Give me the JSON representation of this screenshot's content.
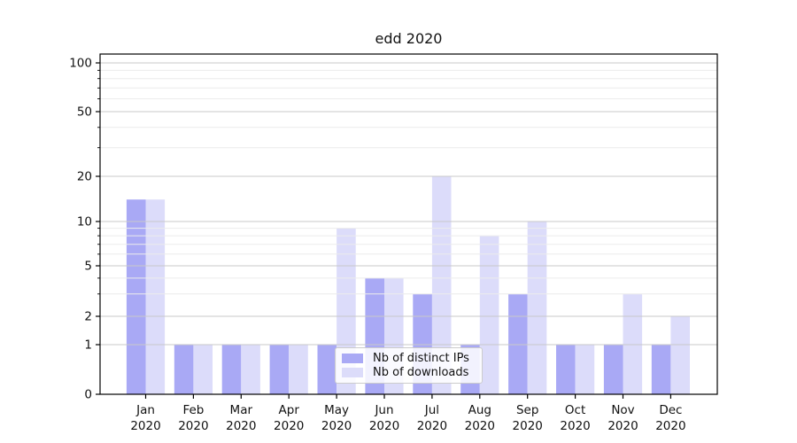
{
  "chart_data": {
    "type": "bar",
    "title": "edd 2020",
    "categories": [
      "Jan",
      "Feb",
      "Mar",
      "Apr",
      "May",
      "Jun",
      "Jul",
      "Aug",
      "Sep",
      "Oct",
      "Nov",
      "Dec"
    ],
    "category_year": "2020",
    "series": [
      {
        "name": "Nb of distinct IPs",
        "color": "#a9a9f5",
        "values": [
          14,
          1,
          1,
          1,
          1,
          4,
          3,
          1,
          3,
          1,
          1,
          1
        ]
      },
      {
        "name": "Nb of downloads",
        "color": "#dcdcfa",
        "values": [
          14,
          1,
          1,
          1,
          9,
          4,
          20,
          8,
          10,
          1,
          3,
          2
        ]
      }
    ],
    "xlabel": "",
    "ylabel": "",
    "yscale": "symlog-like",
    "y_ticks": [
      0,
      1,
      2,
      5,
      10,
      20,
      50,
      100
    ],
    "y_minor_ticks": [
      3,
      4,
      6,
      7,
      8,
      9,
      30,
      40,
      60,
      70,
      80,
      90
    ],
    "ylim": [
      0,
      110
    ],
    "grid": true,
    "legend_position": "lower center"
  },
  "colors": {
    "bar_distinct_ips": "#a9a9f5",
    "bar_downloads": "#dcdcfa",
    "major_grid": "#c9c9c9",
    "minor_grid": "#ececec",
    "spine": "#000000",
    "text": "#111111",
    "background": "#ffffff"
  }
}
